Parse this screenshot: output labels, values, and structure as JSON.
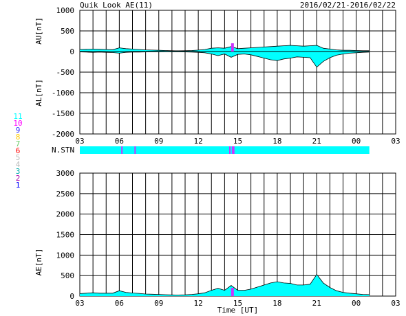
{
  "header": {
    "title": "Quik Look AE(11)",
    "date_range": "2016/02/21-2016/02/22"
  },
  "station_legend": [
    {
      "label": "11",
      "color": "#00ffff"
    },
    {
      "label": "10",
      "color": "#ff00ff"
    },
    {
      "label": "9",
      "color": "#3333ff"
    },
    {
      "label": "8",
      "color": "#ffcc00"
    },
    {
      "label": "7",
      "color": "#66cc66"
    },
    {
      "label": "6",
      "color": "#ff0000"
    },
    {
      "label": "5",
      "color": "#bbbbbb"
    },
    {
      "label": "4",
      "color": "#bbbbbb"
    },
    {
      "label": "3",
      "color": "#00aaaa"
    },
    {
      "label": "2",
      "color": "#aa00aa"
    },
    {
      "label": "1",
      "color": "#0000ff"
    }
  ],
  "nstn_label": "N.STN",
  "colors": {
    "fill": "#00ffff",
    "line": "#000000",
    "station_marker": "#cc33ff"
  },
  "chart_data": [
    {
      "type": "area",
      "panel": "AU_AL",
      "ylabel_upper": "AU[nT]",
      "ylabel_lower": "AL[nT]",
      "xlabel": "",
      "xlim": [
        3,
        27
      ],
      "ylim": [
        -2000,
        1000
      ],
      "yticks": [
        1000,
        500,
        0,
        -500,
        -1000,
        -1500,
        -2000
      ],
      "xticks": [
        "03",
        "06",
        "09",
        "12",
        "15",
        "18",
        "21",
        "00",
        "03"
      ],
      "grid": true,
      "series": [
        {
          "x": [
            3.0,
            3.5,
            4.0,
            4.5,
            5.0,
            5.5,
            6.0,
            6.5,
            7.0,
            7.5,
            8.0,
            8.5,
            9.0,
            9.5,
            10.0,
            10.5,
            11.0,
            11.5,
            12.0,
            12.5,
            13.0,
            13.5,
            14.0,
            14.5,
            15.0,
            15.5,
            16.0,
            16.5,
            17.0,
            17.5,
            18.0,
            18.5,
            19.0,
            19.5,
            20.0,
            20.5,
            21.0,
            21.5,
            22.0,
            22.5,
            23.0,
            23.5,
            24.0,
            24.5,
            25.0
          ],
          "values": [
            50,
            55,
            60,
            55,
            50,
            45,
            90,
            70,
            60,
            50,
            40,
            35,
            30,
            25,
            20,
            18,
            20,
            25,
            35,
            50,
            80,
            90,
            80,
            120,
            70,
            80,
            90,
            100,
            110,
            120,
            130,
            140,
            150,
            140,
            130,
            140,
            150,
            80,
            60,
            40,
            30,
            30,
            25,
            20,
            20
          ]
        },
        {
          "x": [
            3.0,
            3.5,
            4.0,
            4.5,
            5.0,
            5.5,
            6.0,
            6.5,
            7.0,
            7.5,
            8.0,
            8.5,
            9.0,
            9.5,
            10.0,
            10.5,
            11.0,
            11.5,
            12.0,
            12.5,
            13.0,
            13.5,
            14.0,
            14.5,
            15.0,
            15.5,
            16.0,
            16.5,
            17.0,
            17.5,
            18.0,
            18.5,
            19.0,
            19.5,
            20.0,
            20.5,
            21.0,
            21.5,
            22.0,
            22.5,
            23.0,
            23.5,
            24.0,
            24.5,
            25.0
          ],
          "values": [
            -10,
            -15,
            -20,
            -15,
            -20,
            -25,
            -40,
            -20,
            -15,
            -15,
            -10,
            -10,
            -10,
            -8,
            -8,
            -8,
            -10,
            -15,
            -20,
            -30,
            -60,
            -100,
            -60,
            -140,
            -70,
            -60,
            -80,
            -120,
            -160,
            -200,
            -220,
            -180,
            -160,
            -130,
            -140,
            -150,
            -380,
            -240,
            -150,
            -90,
            -60,
            -40,
            -30,
            -20,
            -15
          ]
        }
      ]
    },
    {
      "type": "area",
      "panel": "AE",
      "ylabel": "AE[nT]",
      "xlabel": "Time [UT]",
      "xlim": [
        3,
        27
      ],
      "ylim": [
        0,
        3000
      ],
      "yticks": [
        3000,
        2500,
        2000,
        1500,
        1000,
        500,
        0
      ],
      "xticks": [
        "03",
        "06",
        "09",
        "12",
        "15",
        "18",
        "21",
        "00",
        "03"
      ],
      "grid": true,
      "series": [
        {
          "x": [
            3.0,
            3.5,
            4.0,
            4.5,
            5.0,
            5.5,
            6.0,
            6.5,
            7.0,
            7.5,
            8.0,
            8.5,
            9.0,
            9.5,
            10.0,
            10.5,
            11.0,
            11.5,
            12.0,
            12.5,
            13.0,
            13.5,
            14.0,
            14.5,
            15.0,
            15.5,
            16.0,
            16.5,
            17.0,
            17.5,
            18.0,
            18.5,
            19.0,
            19.5,
            20.0,
            20.5,
            21.0,
            21.5,
            22.0,
            22.5,
            23.0,
            23.5,
            24.0,
            24.5,
            25.0
          ],
          "values": [
            60,
            70,
            80,
            70,
            70,
            70,
            130,
            90,
            75,
            65,
            50,
            45,
            40,
            33,
            28,
            26,
            30,
            40,
            55,
            80,
            140,
            190,
            140,
            260,
            140,
            140,
            170,
            220,
            270,
            320,
            350,
            320,
            310,
            270,
            270,
            290,
            530,
            320,
            210,
            130,
            90,
            70,
            55,
            40,
            35
          ]
        }
      ]
    },
    {
      "type": "bar",
      "panel": "N.STN",
      "xlim": [
        3,
        27
      ],
      "station_count": 11,
      "drop_times": [
        6.2,
        7.2,
        14.4,
        14.6,
        14.7
      ]
    }
  ]
}
